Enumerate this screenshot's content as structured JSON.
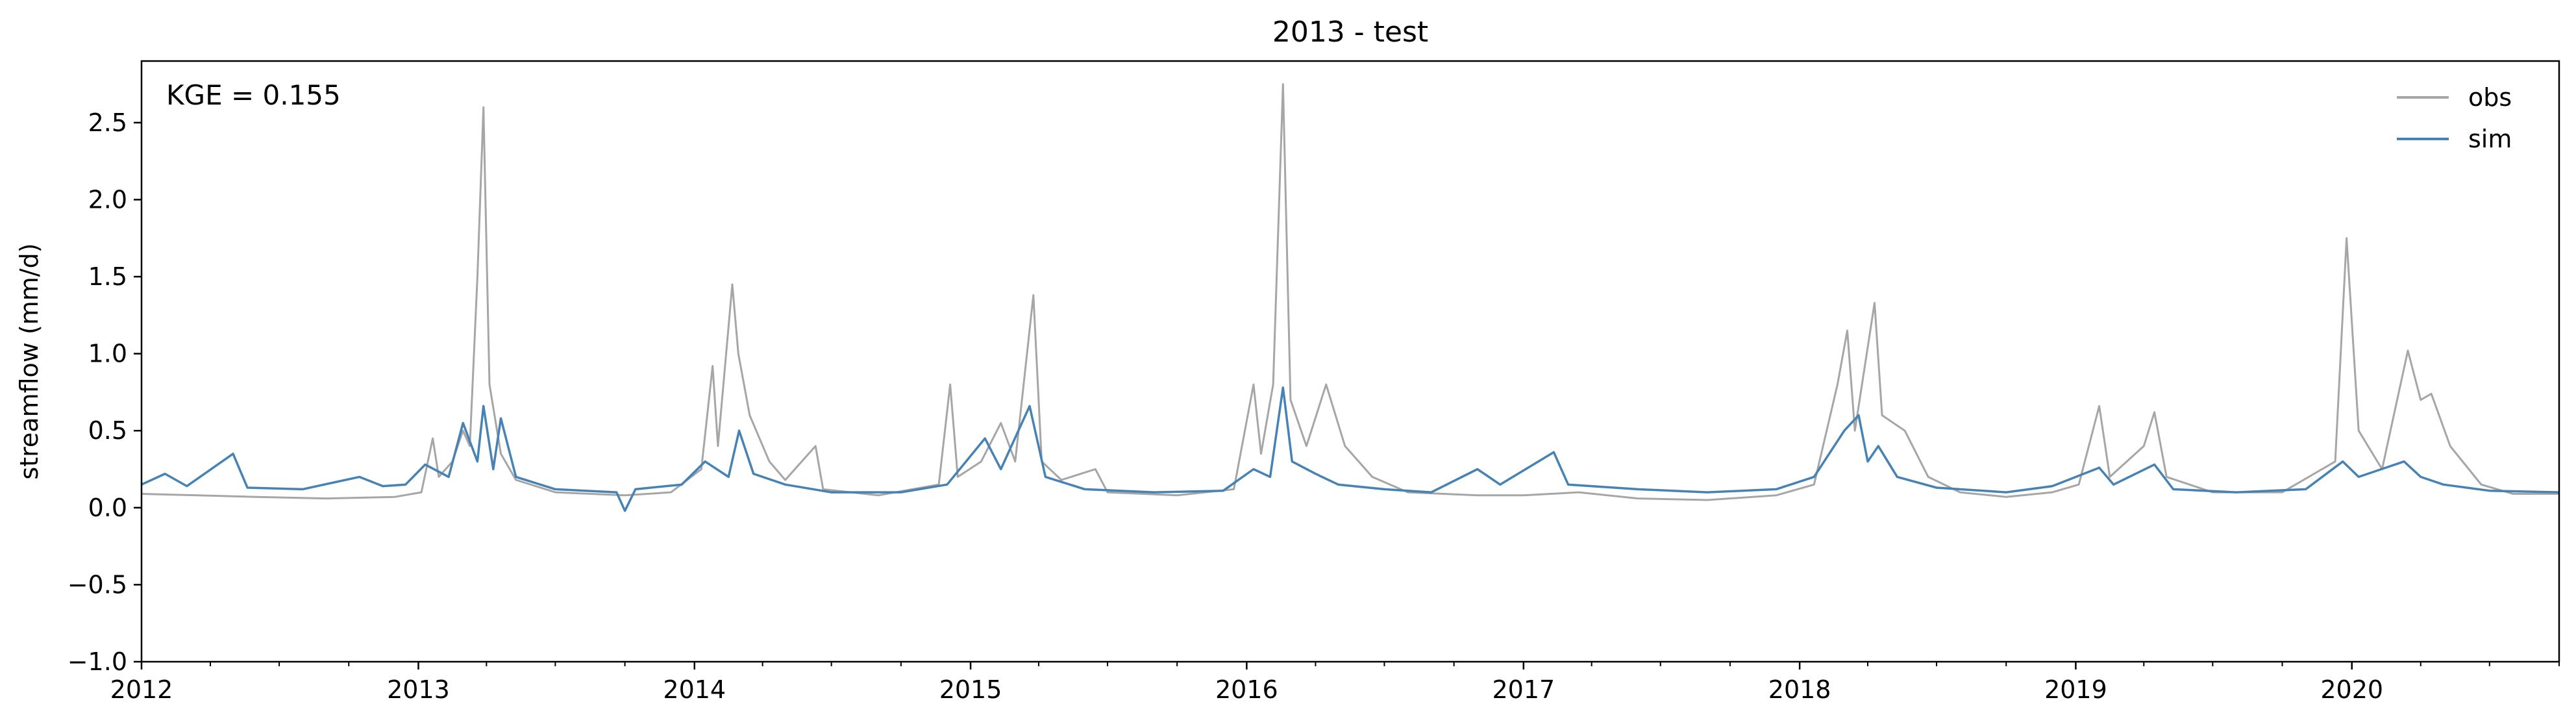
{
  "chart_data": {
    "type": "line",
    "title": "2013 - test",
    "xlabel": "",
    "ylabel": "streamflow (mm/d)",
    "annotation": "KGE = 0.155",
    "xlim": [
      "2012-01-01",
      "2020-10-01"
    ],
    "ylim": [
      -1.0,
      2.9
    ],
    "xticks": [
      "2012",
      "2013",
      "2014",
      "2015",
      "2016",
      "2017",
      "2018",
      "2019",
      "2020"
    ],
    "yticks": [
      "−1.0",
      "−0.5",
      "0.0",
      "0.5",
      "1.0",
      "1.5",
      "2.0",
      "2.5"
    ],
    "grid": false,
    "legend": "top-right",
    "series": [
      {
        "name": "obs",
        "color": "#a6a6a6",
        "points": [
          [
            "2012-01-01",
            0.09
          ],
          [
            "2012-03-15",
            0.08
          ],
          [
            "2012-06-01",
            0.07
          ],
          [
            "2012-09-01",
            0.06
          ],
          [
            "2012-12-01",
            0.07
          ],
          [
            "2013-01-05",
            0.1
          ],
          [
            "2013-01-20",
            0.45
          ],
          [
            "2013-01-28",
            0.2
          ],
          [
            "2013-02-15",
            0.3
          ],
          [
            "2013-03-01",
            0.5
          ],
          [
            "2013-03-10",
            0.4
          ],
          [
            "2013-03-20",
            1.5
          ],
          [
            "2013-03-28",
            2.6
          ],
          [
            "2013-04-05",
            0.8
          ],
          [
            "2013-04-20",
            0.35
          ],
          [
            "2013-05-10",
            0.18
          ],
          [
            "2013-07-01",
            0.1
          ],
          [
            "2013-10-01",
            0.08
          ],
          [
            "2013-12-01",
            0.1
          ],
          [
            "2014-01-10",
            0.25
          ],
          [
            "2014-01-25",
            0.92
          ],
          [
            "2014-02-01",
            0.4
          ],
          [
            "2014-02-20",
            1.45
          ],
          [
            "2014-02-28",
            1.0
          ],
          [
            "2014-03-15",
            0.6
          ],
          [
            "2014-04-10",
            0.3
          ],
          [
            "2014-05-01",
            0.18
          ],
          [
            "2014-06-10",
            0.4
          ],
          [
            "2014-06-20",
            0.12
          ],
          [
            "2014-09-01",
            0.08
          ],
          [
            "2014-11-20",
            0.15
          ],
          [
            "2014-12-05",
            0.8
          ],
          [
            "2014-12-15",
            0.2
          ],
          [
            "2015-01-15",
            0.3
          ],
          [
            "2015-02-10",
            0.55
          ],
          [
            "2015-03-01",
            0.3
          ],
          [
            "2015-03-25",
            1.38
          ],
          [
            "2015-04-05",
            0.3
          ],
          [
            "2015-05-01",
            0.18
          ],
          [
            "2015-06-15",
            0.25
          ],
          [
            "2015-07-01",
            0.1
          ],
          [
            "2015-10-01",
            0.08
          ],
          [
            "2015-12-15",
            0.12
          ],
          [
            "2016-01-10",
            0.8
          ],
          [
            "2016-01-20",
            0.35
          ],
          [
            "2016-02-05",
            0.8
          ],
          [
            "2016-02-18",
            2.75
          ],
          [
            "2016-02-28",
            0.7
          ],
          [
            "2016-03-20",
            0.4
          ],
          [
            "2016-04-15",
            0.8
          ],
          [
            "2016-05-10",
            0.4
          ],
          [
            "2016-06-15",
            0.2
          ],
          [
            "2016-08-01",
            0.1
          ],
          [
            "2016-11-01",
            0.08
          ],
          [
            "2017-01-01",
            0.08
          ],
          [
            "2017-03-15",
            0.1
          ],
          [
            "2017-06-01",
            0.06
          ],
          [
            "2017-09-01",
            0.05
          ],
          [
            "2017-12-01",
            0.08
          ],
          [
            "2018-01-20",
            0.15
          ],
          [
            "2018-02-20",
            0.8
          ],
          [
            "2018-03-05",
            1.15
          ],
          [
            "2018-03-15",
            0.5
          ],
          [
            "2018-04-10",
            1.33
          ],
          [
            "2018-04-20",
            0.6
          ],
          [
            "2018-05-20",
            0.5
          ],
          [
            "2018-06-20",
            0.2
          ],
          [
            "2018-08-01",
            0.1
          ],
          [
            "2018-10-01",
            0.07
          ],
          [
            "2018-12-01",
            0.1
          ],
          [
            "2019-01-05",
            0.15
          ],
          [
            "2019-02-01",
            0.66
          ],
          [
            "2019-02-15",
            0.2
          ],
          [
            "2019-04-01",
            0.4
          ],
          [
            "2019-04-15",
            0.62
          ],
          [
            "2019-05-01",
            0.2
          ],
          [
            "2019-07-01",
            0.1
          ],
          [
            "2019-10-01",
            0.1
          ],
          [
            "2019-12-10",
            0.3
          ],
          [
            "2019-12-25",
            1.75
          ],
          [
            "2020-01-10",
            0.5
          ],
          [
            "2020-02-10",
            0.25
          ],
          [
            "2020-03-15",
            1.02
          ],
          [
            "2020-04-01",
            0.7
          ],
          [
            "2020-04-15",
            0.74
          ],
          [
            "2020-05-10",
            0.4
          ],
          [
            "2020-06-20",
            0.15
          ],
          [
            "2020-08-01",
            0.09
          ],
          [
            "2020-10-01",
            0.09
          ]
        ]
      },
      {
        "name": "sim",
        "color": "#4682b4",
        "points": [
          [
            "2012-01-01",
            0.15
          ],
          [
            "2012-02-01",
            0.22
          ],
          [
            "2012-03-01",
            0.14
          ],
          [
            "2012-05-01",
            0.35
          ],
          [
            "2012-05-20",
            0.13
          ],
          [
            "2012-08-01",
            0.12
          ],
          [
            "2012-10-15",
            0.2
          ],
          [
            "2012-11-15",
            0.14
          ],
          [
            "2012-12-15",
            0.15
          ],
          [
            "2013-01-10",
            0.28
          ],
          [
            "2013-02-10",
            0.2
          ],
          [
            "2013-03-01",
            0.55
          ],
          [
            "2013-03-20",
            0.3
          ],
          [
            "2013-03-28",
            0.66
          ],
          [
            "2013-04-10",
            0.25
          ],
          [
            "2013-04-20",
            0.58
          ],
          [
            "2013-05-10",
            0.2
          ],
          [
            "2013-07-01",
            0.12
          ],
          [
            "2013-09-20",
            0.1
          ],
          [
            "2013-10-01",
            -0.02
          ],
          [
            "2013-10-15",
            0.12
          ],
          [
            "2013-12-15",
            0.15
          ],
          [
            "2014-01-15",
            0.3
          ],
          [
            "2014-02-15",
            0.2
          ],
          [
            "2014-03-01",
            0.5
          ],
          [
            "2014-03-20",
            0.22
          ],
          [
            "2014-05-01",
            0.15
          ],
          [
            "2014-07-01",
            0.1
          ],
          [
            "2014-10-01",
            0.1
          ],
          [
            "2014-12-01",
            0.15
          ],
          [
            "2015-01-20",
            0.45
          ],
          [
            "2015-02-10",
            0.25
          ],
          [
            "2015-03-20",
            0.66
          ],
          [
            "2015-04-10",
            0.2
          ],
          [
            "2015-06-01",
            0.12
          ],
          [
            "2015-09-01",
            0.1
          ],
          [
            "2015-12-01",
            0.11
          ],
          [
            "2016-01-10",
            0.25
          ],
          [
            "2016-02-01",
            0.2
          ],
          [
            "2016-02-18",
            0.78
          ],
          [
            "2016-03-01",
            0.3
          ],
          [
            "2016-04-01",
            0.22
          ],
          [
            "2016-05-01",
            0.15
          ],
          [
            "2016-07-01",
            0.12
          ],
          [
            "2016-09-01",
            0.1
          ],
          [
            "2016-11-01",
            0.25
          ],
          [
            "2016-12-01",
            0.15
          ],
          [
            "2017-02-10",
            0.36
          ],
          [
            "2017-03-01",
            0.15
          ],
          [
            "2017-06-01",
            0.12
          ],
          [
            "2017-09-01",
            0.1
          ],
          [
            "2017-12-01",
            0.12
          ],
          [
            "2018-01-20",
            0.2
          ],
          [
            "2018-03-01",
            0.5
          ],
          [
            "2018-03-20",
            0.6
          ],
          [
            "2018-04-01",
            0.3
          ],
          [
            "2018-04-15",
            0.4
          ],
          [
            "2018-05-10",
            0.2
          ],
          [
            "2018-07-01",
            0.13
          ],
          [
            "2018-10-01",
            0.1
          ],
          [
            "2018-12-01",
            0.14
          ],
          [
            "2019-02-01",
            0.26
          ],
          [
            "2019-02-20",
            0.15
          ],
          [
            "2019-04-15",
            0.28
          ],
          [
            "2019-05-10",
            0.12
          ],
          [
            "2019-08-01",
            0.1
          ],
          [
            "2019-11-01",
            0.12
          ],
          [
            "2019-12-20",
            0.3
          ],
          [
            "2020-01-10",
            0.2
          ],
          [
            "2020-03-10",
            0.3
          ],
          [
            "2020-04-01",
            0.2
          ],
          [
            "2020-05-01",
            0.15
          ],
          [
            "2020-07-01",
            0.11
          ],
          [
            "2020-10-01",
            0.1
          ]
        ]
      }
    ]
  }
}
